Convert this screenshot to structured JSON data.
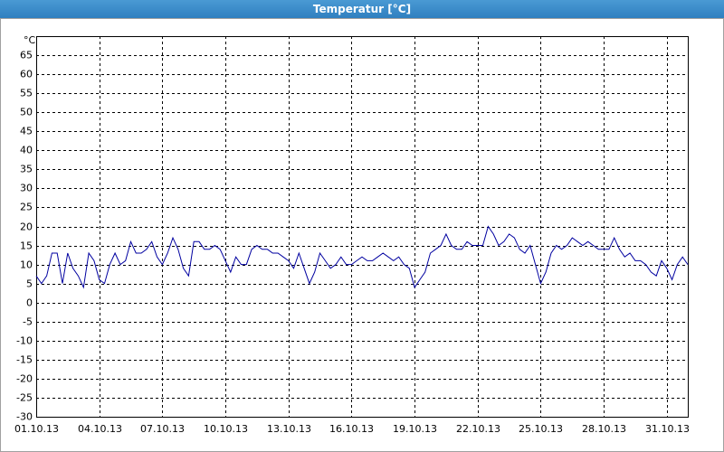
{
  "chart_data": {
    "type": "line",
    "title": "Temperatur [°C]",
    "unit": "°C",
    "x": [
      0,
      0.25,
      0.5,
      0.75,
      1,
      1.25,
      1.5,
      1.75,
      2,
      2.25,
      2.5,
      2.75,
      3,
      3.25,
      3.5,
      3.75,
      4,
      4.25,
      4.5,
      4.75,
      5,
      5.25,
      5.5,
      5.75,
      6,
      6.25,
      6.5,
      6.75,
      7,
      7.25,
      7.5,
      7.75,
      8,
      8.25,
      8.5,
      8.75,
      9,
      9.25,
      9.5,
      9.75,
      10,
      10.25,
      10.5,
      10.75,
      11,
      11.25,
      11.5,
      11.75,
      12,
      12.25,
      12.5,
      12.75,
      13,
      13.25,
      13.5,
      13.75,
      14,
      14.25,
      14.5,
      14.75,
      15,
      15.25,
      15.5,
      15.75,
      16,
      16.25,
      16.5,
      16.75,
      17,
      17.25,
      17.5,
      17.75,
      18,
      18.25,
      18.5,
      18.75,
      19,
      19.25,
      19.5,
      19.75,
      20,
      20.25,
      20.5,
      20.75,
      21,
      21.25,
      21.5,
      21.75,
      22,
      22.25,
      22.5,
      22.75,
      23,
      23.25,
      23.5,
      23.75,
      24,
      24.25,
      24.5,
      24.75,
      25,
      25.25,
      25.5,
      25.75,
      26,
      26.25,
      26.5,
      26.75,
      27,
      27.25,
      27.5,
      27.75,
      28,
      28.25,
      28.5,
      28.75,
      29,
      29.25,
      29.5,
      29.75,
      30,
      30.25,
      30.5,
      30.75,
      31
    ],
    "series": [
      {
        "color": "#0000a0",
        "values": [
          7,
          5,
          7,
          13,
          13,
          5,
          13,
          9,
          7,
          4,
          13,
          11,
          6,
          5,
          10,
          13,
          10,
          11,
          16,
          13,
          13,
          14,
          16,
          12,
          10,
          13,
          17,
          14,
          9,
          7,
          16,
          16,
          14,
          14,
          15,
          14,
          11,
          8,
          12,
          10,
          10,
          14,
          15,
          14,
          14,
          13,
          13,
          12,
          11,
          9,
          13,
          9,
          5,
          8,
          13,
          11,
          9,
          10,
          12,
          10,
          10,
          11,
          12,
          11,
          11,
          12,
          13,
          12,
          11,
          12,
          10,
          9,
          4,
          6,
          8,
          13,
          14,
          15,
          18,
          15,
          14,
          14,
          16,
          15,
          15,
          15,
          20,
          18,
          15,
          16,
          18,
          17,
          14,
          13,
          15,
          10,
          5,
          8,
          13,
          15,
          14,
          15,
          17,
          16,
          15,
          16,
          15,
          14,
          14,
          14,
          17,
          14,
          12,
          13,
          11,
          11,
          10,
          8,
          7,
          11,
          9,
          6,
          10,
          12,
          10
        ]
      }
    ],
    "xlim": [
      0,
      31
    ],
    "xticks": [
      {
        "value": 0,
        "label": "01.10.13"
      },
      {
        "value": 3,
        "label": "04.10.13"
      },
      {
        "value": 6,
        "label": "07.10.13"
      },
      {
        "value": 9,
        "label": "10.10.13"
      },
      {
        "value": 12,
        "label": "13.10.13"
      },
      {
        "value": 15,
        "label": "16.10.13"
      },
      {
        "value": 18,
        "label": "19.10.13"
      },
      {
        "value": 21,
        "label": "22.10.13"
      },
      {
        "value": 24,
        "label": "25.10.13"
      },
      {
        "value": 27,
        "label": "28.10.13"
      },
      {
        "value": 30,
        "label": "31.10.13"
      }
    ],
    "ylim": [
      -30,
      70
    ],
    "yticks": [
      -30,
      -25,
      -20,
      -15,
      -10,
      -5,
      0,
      5,
      10,
      15,
      20,
      25,
      30,
      35,
      40,
      45,
      50,
      55,
      60,
      65
    ],
    "grid": true
  }
}
